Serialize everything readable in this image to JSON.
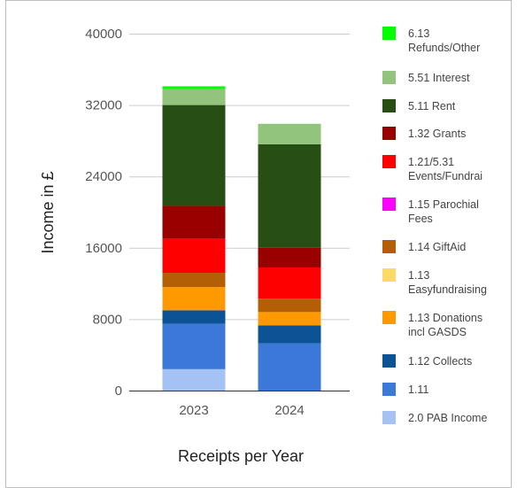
{
  "chart_data": {
    "type": "bar",
    "stacked": true,
    "title": "",
    "xlabel": "Receipts per Year",
    "ylabel": "Income in £",
    "ylim": [
      0,
      40000
    ],
    "yticks": [
      "0",
      "8000",
      "16000",
      "24000",
      "32000",
      "40000"
    ],
    "categories": [
      "2023",
      "2024"
    ],
    "grid": true,
    "legend_position": "right",
    "series": [
      {
        "name": "2.0 PAB Income",
        "lines": [
          "2.0 PAB Income"
        ],
        "color": "#a4c2f4",
        "values": [
          2400,
          0
        ]
      },
      {
        "name": "1.11",
        "lines": [
          "1.11"
        ],
        "color": "#3c78d8",
        "values": [
          5100,
          5300
        ]
      },
      {
        "name": "1.12 Collects",
        "lines": [
          "1.12 Collects"
        ],
        "color": "#0b5394",
        "values": [
          1500,
          2000
        ]
      },
      {
        "name": "1.13 Donations incl GASDS",
        "lines": [
          "1.13 Donations",
          "incl GASDS"
        ],
        "color": "#ff9900",
        "values": [
          2600,
          1500
        ]
      },
      {
        "name": "1.13 Easyfundraising",
        "lines": [
          "1.13",
          "Easyfundraising"
        ],
        "color": "#ffd966",
        "values": [
          0,
          0
        ]
      },
      {
        "name": "1.14 GiftAid",
        "lines": [
          "1.14 GiftAid"
        ],
        "color": "#b45f06",
        "values": [
          1600,
          1500
        ]
      },
      {
        "name": "1.15 Parochial Fees",
        "lines": [
          "1.15 Parochial",
          "Fees"
        ],
        "color": "#ff00ff",
        "values": [
          0,
          0
        ]
      },
      {
        "name": "1.21/5.31 Events/Fundrai",
        "lines": [
          "1.21/5.31",
          "Events/Fundrai"
        ],
        "color": "#ff0000",
        "values": [
          3800,
          3500
        ]
      },
      {
        "name": "1.32 Grants",
        "lines": [
          "1.32 Grants"
        ],
        "color": "#990000",
        "values": [
          3700,
          2200
        ]
      },
      {
        "name": "5.11 Rent",
        "lines": [
          "5.11 Rent"
        ],
        "color": "#274e13",
        "values": [
          11300,
          11600
        ]
      },
      {
        "name": "5.51 Interest",
        "lines": [
          "5.51 Interest"
        ],
        "color": "#93c47d",
        "values": [
          1800,
          2300
        ]
      },
      {
        "name": "6.13 Refunds/Other",
        "lines": [
          "6.13",
          "Refunds/Other"
        ],
        "color": "#00ff00",
        "values": [
          300,
          0
        ]
      }
    ]
  }
}
